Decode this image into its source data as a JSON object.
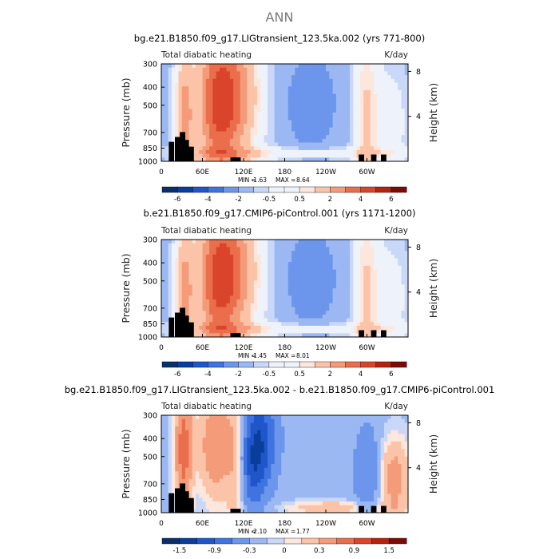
{
  "main_title": "ANN",
  "chart_data": [
    {
      "type": "heatmap",
      "title": "bg.e21.B1850.f09_g17.LIGtransient_123.5ka.002 (yrs 771-800)",
      "left_label": "Total diabatic heating",
      "right_label": "K/day",
      "ylabel": "Pressure (mb)",
      "right_axis_label": "Height (km)",
      "x_ticks": [
        "0",
        "60E",
        "120E",
        "180",
        "120W",
        "60W"
      ],
      "x_tick_lon": [
        0,
        60,
        120,
        180,
        240,
        300
      ],
      "xlim": [
        0,
        360
      ],
      "y_ticks": [
        "300",
        "400",
        "500",
        "700",
        "850",
        "1000"
      ],
      "y_tick_p": [
        300,
        400,
        500,
        700,
        850,
        1000
      ],
      "ylim": [
        1000,
        300
      ],
      "height_ticks": [
        "8",
        "4"
      ],
      "height_tick_km": [
        8,
        4
      ],
      "min_label": "MIN =",
      "min_value": "-1.63",
      "max_label": "MAX =",
      "max_value": "8.64",
      "colorbar_levels": [
        -6,
        -5,
        -4,
        -3,
        -2,
        -1,
        -0.5,
        0,
        0.5,
        1,
        2,
        3,
        4,
        5,
        6
      ],
      "colorbar_tick_labels": [
        "-6",
        "-4",
        "-2",
        "-0.5",
        "0.5",
        "2",
        "4",
        "6"
      ],
      "colorbar_tick_index": [
        0,
        2,
        4,
        6,
        8,
        10,
        12,
        14
      ],
      "pattern": "full"
    },
    {
      "type": "heatmap",
      "title": "b.e21.B1850.f09_g17.CMIP6-piControl.001 (yrs 1171-1200)",
      "left_label": "Total diabatic heating",
      "right_label": "K/day",
      "ylabel": "Pressure (mb)",
      "right_axis_label": "Height (km)",
      "x_ticks": [
        "0",
        "60E",
        "120E",
        "180",
        "120W",
        "60W"
      ],
      "x_tick_lon": [
        0,
        60,
        120,
        180,
        240,
        300
      ],
      "xlim": [
        0,
        360
      ],
      "y_ticks": [
        "300",
        "400",
        "500",
        "700",
        "850",
        "1000"
      ],
      "y_tick_p": [
        300,
        400,
        500,
        700,
        850,
        1000
      ],
      "ylim": [
        1000,
        300
      ],
      "height_ticks": [
        "8",
        "4"
      ],
      "height_tick_km": [
        8,
        4
      ],
      "min_label": "MIN =",
      "min_value": "-1.45",
      "max_label": "MAX =",
      "max_value": "8.01",
      "colorbar_levels": [
        -6,
        -5,
        -4,
        -3,
        -2,
        -1,
        -0.5,
        0,
        0.5,
        1,
        2,
        3,
        4,
        5,
        6
      ],
      "colorbar_tick_labels": [
        "-6",
        "-4",
        "-2",
        "-0.5",
        "0.5",
        "2",
        "4",
        "6"
      ],
      "colorbar_tick_index": [
        0,
        2,
        4,
        6,
        8,
        10,
        12,
        14
      ],
      "pattern": "full"
    },
    {
      "type": "heatmap",
      "title": "bg.e21.B1850.f09_g17.LIGtransient_123.5ka.002 - b.e21.B1850.f09_g17.CMIP6-piControl.001",
      "left_label": "Total diabatic heating",
      "right_label": "K/day",
      "ylabel": "Pressure (mb)",
      "right_axis_label": "Height (km)",
      "x_ticks": [
        "0",
        "60E",
        "120E",
        "180",
        "120W",
        "60W"
      ],
      "x_tick_lon": [
        0,
        60,
        120,
        180,
        240,
        300
      ],
      "xlim": [
        0,
        360
      ],
      "y_ticks": [
        "300",
        "400",
        "500",
        "700",
        "850",
        "1000"
      ],
      "y_tick_p": [
        300,
        400,
        500,
        700,
        850,
        1000
      ],
      "ylim": [
        1000,
        300
      ],
      "height_ticks": [
        "8",
        "4"
      ],
      "height_tick_km": [
        8,
        4
      ],
      "min_label": "MIN =",
      "min_value": "-2.10",
      "max_label": "MAX =",
      "max_value": "1.77",
      "colorbar_levels": [
        -1.5,
        -1.2,
        -0.9,
        -0.6,
        -0.3,
        -0.1,
        0,
        0.1,
        0.3,
        0.6,
        0.9,
        1.2,
        1.5
      ],
      "colorbar_tick_labels": [
        "-1.5",
        "-0.9",
        "-0.3",
        "0",
        "0.3",
        "0.9",
        "1.5"
      ],
      "colorbar_tick_index": [
        0,
        2,
        4,
        6,
        8,
        10,
        12
      ],
      "pattern": "diff"
    }
  ],
  "colors": {
    "palette": [
      "#08306b",
      "#0a3d9c",
      "#1f56c9",
      "#3f74e0",
      "#6c95ec",
      "#9bb8f3",
      "#c9d8f8",
      "#eef3fb",
      "#fde7dc",
      "#fbc4a9",
      "#f49b7a",
      "#ea6e4c",
      "#d9442a",
      "#b5230f",
      "#7d0b05"
    ],
    "terrain": "#000000"
  }
}
